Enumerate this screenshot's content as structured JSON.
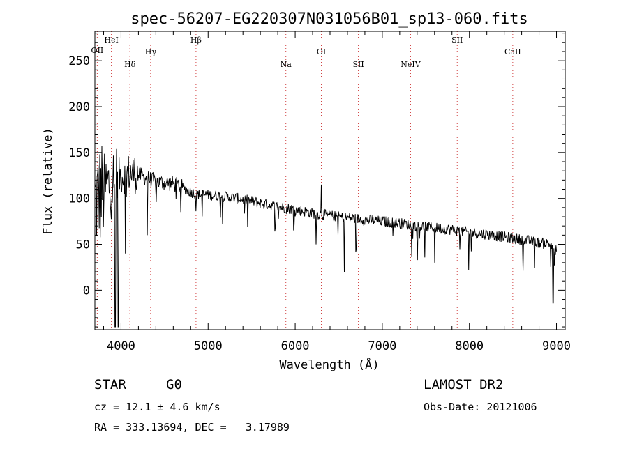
{
  "chart_data": {
    "type": "line",
    "title": "spec-56207-EG220307N031056B01_sp13-060.fits",
    "xlabel": "Wavelength (Å)",
    "ylabel": "Flux (relative)",
    "xlim": [
      3700,
      9100
    ],
    "ylim": [
      -43,
      282
    ],
    "xticks": [
      4000,
      5000,
      6000,
      7000,
      8000,
      9000
    ],
    "yticks": [
      0,
      50,
      100,
      150,
      200,
      250
    ],
    "grid": false,
    "lines": [
      {
        "label": "OII",
        "x": 3727
      },
      {
        "label": "HeI",
        "x": 3889
      },
      {
        "label": "Hδ",
        "x": 4102
      },
      {
        "label": "Hγ",
        "x": 4340
      },
      {
        "label": "Hβ",
        "x": 4861
      },
      {
        "label": "Na",
        "x": 5893
      },
      {
        "label": "OI",
        "x": 6300
      },
      {
        "label": "SII",
        "x": 6725
      },
      {
        "label": "NeIV",
        "x": 7325
      },
      {
        "label": "SII",
        "x": 7860
      },
      {
        "label": "CaII",
        "x": 8498
      }
    ],
    "series": [
      {
        "continuum_x": [
          3700,
          3800,
          3900,
          4000,
          4100,
          4200,
          4300,
          4400,
          4500,
          4600,
          4700,
          4800,
          4900,
          5000,
          5200,
          5400,
          5600,
          5800,
          6000,
          6200,
          6400,
          6600,
          6800,
          7000,
          7200,
          7400,
          7600,
          7800,
          8000,
          8200,
          8400,
          8600,
          8800,
          8950,
          9000
        ],
        "continuum_y": [
          95,
          110,
          118,
          125,
          128,
          126,
          122,
          118,
          117,
          116,
          112,
          107,
          104,
          104,
          102,
          99,
          95,
          91,
          88,
          84,
          81,
          79,
          77,
          75,
          73,
          70,
          68,
          66,
          63,
          61,
          58,
          55,
          52,
          50,
          48
        ]
      }
    ]
  },
  "info": {
    "class_label": "STAR",
    "subclass": "G0",
    "cz": "cz = 12.1 ± 4.6 km/s",
    "coords": "RA = 333.13694, DEC =   3.17989",
    "survey": "LAMOST DR2",
    "obs_date": "Obs-Date: 20121006"
  }
}
